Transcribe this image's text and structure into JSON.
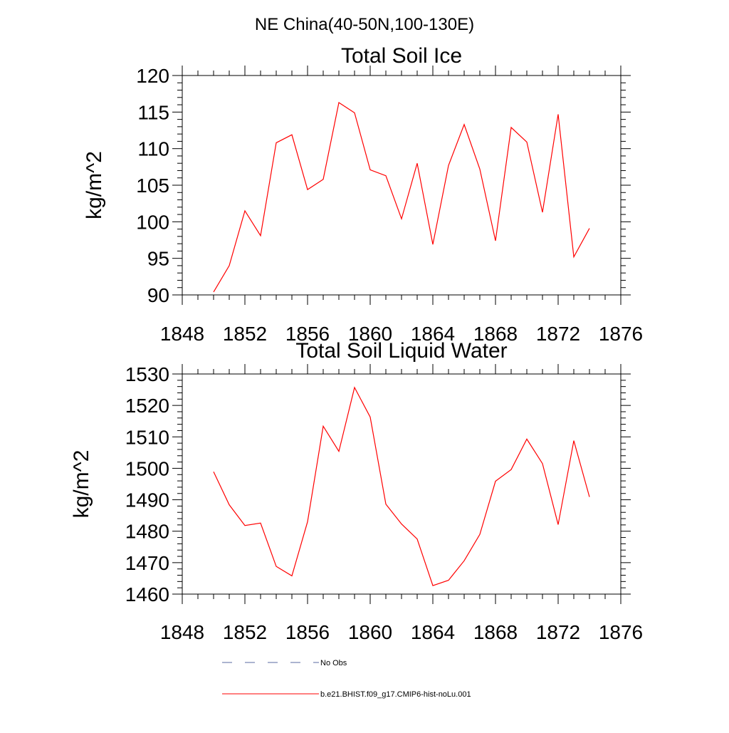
{
  "figure": {
    "title": "NE China(40-50N,100-130E)"
  },
  "chart_data": [
    {
      "type": "line",
      "title": "Total Soil Ice",
      "xlabel": "",
      "ylabel": "kg/m^2",
      "xlim": [
        1848,
        1876
      ],
      "ylim": [
        90,
        120
      ],
      "xticks": [
        1848,
        1852,
        1856,
        1860,
        1864,
        1868,
        1872,
        1876
      ],
      "yticks": [
        90,
        95,
        100,
        105,
        110,
        115,
        120
      ],
      "x": [
        1850,
        1851,
        1852,
        1853,
        1854,
        1855,
        1856,
        1857,
        1858,
        1859,
        1860,
        1861,
        1862,
        1863,
        1864,
        1865,
        1866,
        1867,
        1868,
        1869,
        1870,
        1871,
        1872,
        1873,
        1874
      ],
      "series": [
        {
          "name": "b.e21.BHIST.f09_g17.CMIP6-hist-noLu.001",
          "color": "#ff0000",
          "values": [
            90.4,
            94.0,
            101.5,
            98.1,
            110.8,
            111.9,
            104.4,
            105.8,
            116.3,
            114.9,
            107.1,
            106.3,
            100.4,
            108.0,
            96.9,
            107.7,
            113.3,
            107.2,
            97.4,
            112.9,
            110.9,
            101.3,
            114.7,
            95.2,
            99.1
          ]
        }
      ],
      "grid": false
    },
    {
      "type": "line",
      "title": "Total Soil Liquid Water",
      "xlabel": "",
      "ylabel": "kg/m^2",
      "xlim": [
        1848,
        1876
      ],
      "ylim": [
        1460,
        1530
      ],
      "xticks": [
        1848,
        1852,
        1856,
        1860,
        1864,
        1868,
        1872,
        1876
      ],
      "yticks": [
        1460,
        1470,
        1480,
        1490,
        1500,
        1510,
        1520,
        1530
      ],
      "x": [
        1850,
        1851,
        1852,
        1853,
        1854,
        1855,
        1856,
        1857,
        1858,
        1859,
        1860,
        1861,
        1862,
        1863,
        1864,
        1865,
        1866,
        1867,
        1868,
        1869,
        1870,
        1871,
        1872,
        1873,
        1874
      ],
      "series": [
        {
          "name": "b.e21.BHIST.f09_g17.CMIP6-hist-noLu.001",
          "color": "#ff0000",
          "values": [
            1498.9,
            1488.4,
            1481.8,
            1482.6,
            1468.8,
            1465.8,
            1483.0,
            1513.4,
            1505.4,
            1525.7,
            1516.3,
            1488.6,
            1482.3,
            1477.5,
            1462.7,
            1464.4,
            1470.6,
            1479.0,
            1495.9,
            1499.6,
            1509.3,
            1501.5,
            1482.1,
            1508.8,
            1490.9
          ]
        }
      ],
      "grid": false
    }
  ],
  "legend": {
    "placement": "bottom",
    "items": [
      {
        "label": "No Obs",
        "color": "#5a6aa0",
        "dash": "dashed"
      },
      {
        "label": "b.e21.BHIST.f09_g17.CMIP6-hist-noLu.001",
        "color": "#ff0000",
        "dash": "solid"
      }
    ]
  }
}
